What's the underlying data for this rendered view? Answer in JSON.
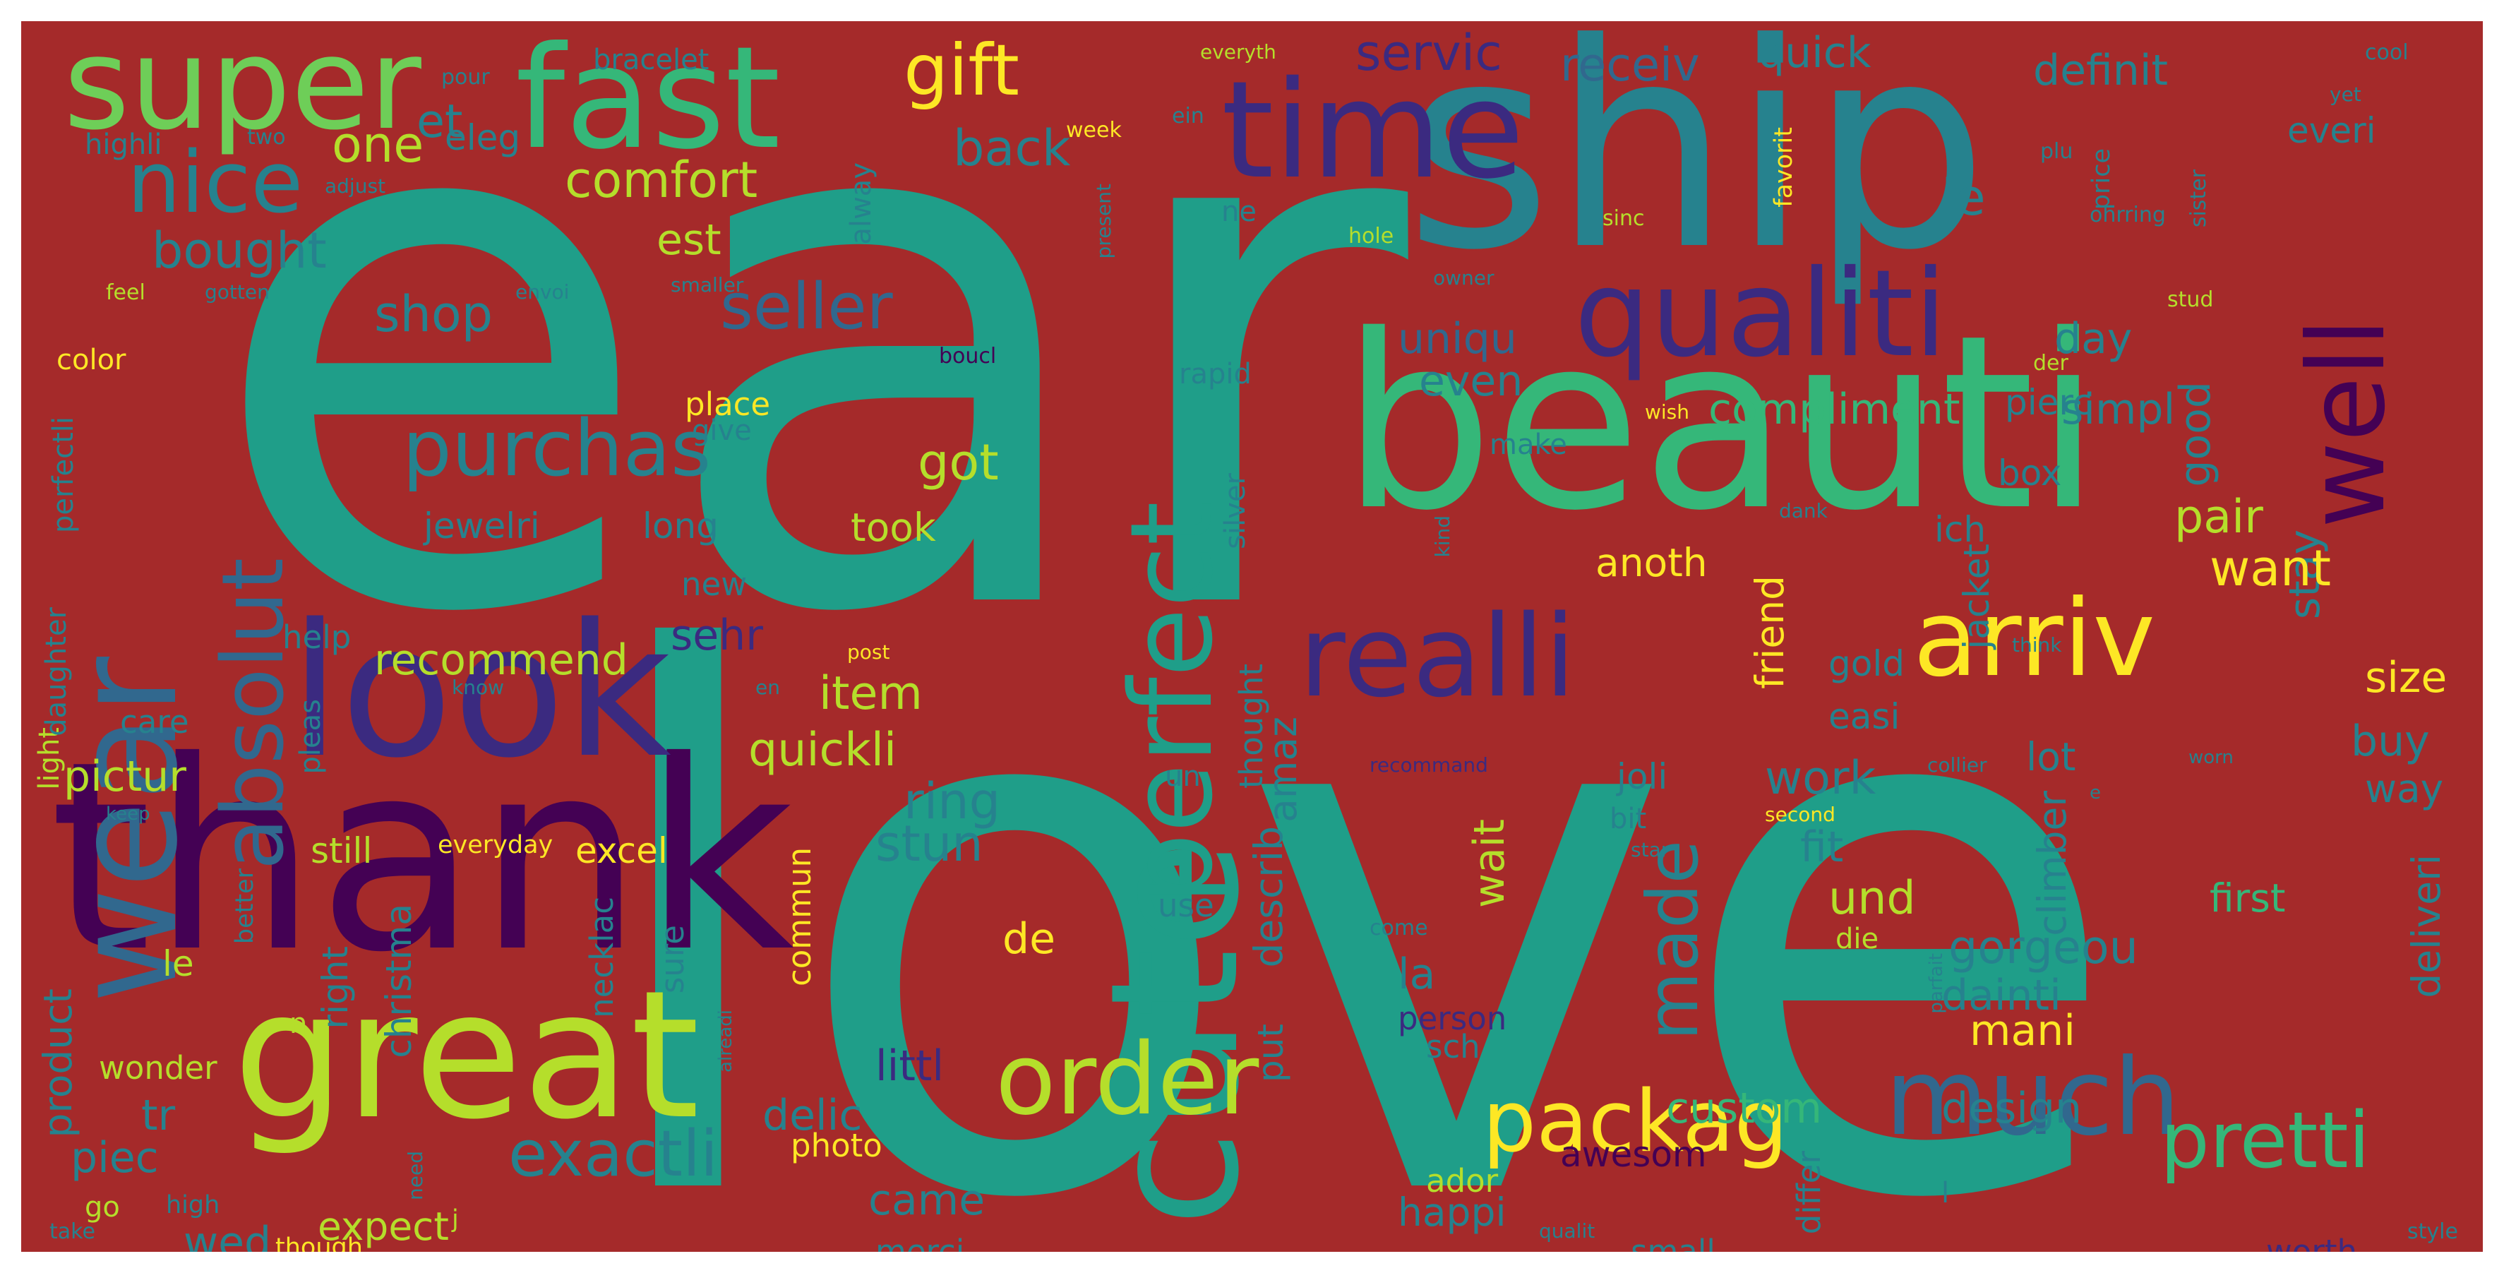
{
  "background_color": "#a52a2a",
  "palette": {
    "dp": "#440154",
    "in": "#3b2a80",
    "bl": "#31688e",
    "tl": "#26828e",
    "tg": "#1f9e89",
    "gr": "#35b779",
    "lg": "#6ece58",
    "lm": "#b5de2b",
    "ye": "#fde725"
  },
  "words": [
    {
      "text": "ear",
      "color": "tg"
    },
    {
      "text": "love",
      "color": "tg"
    },
    {
      "text": "ship",
      "color": "tl"
    },
    {
      "text": "beauti",
      "color": "gr"
    },
    {
      "text": "thank",
      "color": "dp"
    },
    {
      "text": "look",
      "color": "in"
    },
    {
      "text": "cute",
      "color": "tg"
    },
    {
      "text": "great",
      "color": "lm"
    },
    {
      "text": "wear",
      "color": "bl"
    },
    {
      "text": "fast",
      "color": "gr"
    },
    {
      "text": "super",
      "color": "lg"
    },
    {
      "text": "time",
      "color": "in"
    },
    {
      "text": "qualiti",
      "color": "in"
    },
    {
      "text": "perfect",
      "color": "tg"
    },
    {
      "text": "realli",
      "color": "in"
    },
    {
      "text": "arriv",
      "color": "ye"
    },
    {
      "text": "well",
      "color": "dp"
    },
    {
      "text": "order",
      "color": "lm"
    },
    {
      "text": "much",
      "color": "bl"
    },
    {
      "text": "packag",
      "color": "ye"
    },
    {
      "text": "pretti",
      "color": "gr"
    },
    {
      "text": "absolut",
      "color": "bl"
    },
    {
      "text": "nice",
      "color": "tl"
    },
    {
      "text": "purchas",
      "color": "tl"
    },
    {
      "text": "exactli",
      "color": "tl"
    },
    {
      "text": "gift",
      "color": "ye"
    },
    {
      "text": "seller",
      "color": "bl"
    },
    {
      "text": "made",
      "color": "tl"
    },
    {
      "text": "one",
      "color": "lm"
    },
    {
      "text": "comfort",
      "color": "lm"
    },
    {
      "text": "bought",
      "color": "tl"
    },
    {
      "text": "et",
      "color": "tl"
    },
    {
      "text": "eleg",
      "color": "tl"
    },
    {
      "text": "est",
      "color": "lm"
    },
    {
      "text": "shop",
      "color": "tl"
    },
    {
      "text": "back",
      "color": "tl"
    },
    {
      "text": "servic",
      "color": "in"
    },
    {
      "text": "receiv",
      "color": "bl"
    },
    {
      "text": "quick",
      "color": "tl"
    },
    {
      "text": "definit",
      "color": "tl"
    },
    {
      "text": "everi",
      "color": "tl"
    },
    {
      "text": "je",
      "color": "tl"
    },
    {
      "text": "good",
      "color": "tl"
    },
    {
      "text": "day",
      "color": "tl"
    },
    {
      "text": "uniqu",
      "color": "bl"
    },
    {
      "text": "even",
      "color": "tl"
    },
    {
      "text": "compliment",
      "color": "gr"
    },
    {
      "text": "simpl",
      "color": "tl"
    },
    {
      "text": "pierc",
      "color": "tl"
    },
    {
      "text": "stay",
      "color": "tl"
    },
    {
      "text": "box",
      "color": "tl"
    },
    {
      "text": "pair",
      "color": "lm"
    },
    {
      "text": "ich",
      "color": "tl"
    },
    {
      "text": "want",
      "color": "ye"
    },
    {
      "text": "got",
      "color": "lm"
    },
    {
      "text": "jewelri",
      "color": "tl"
    },
    {
      "text": "long",
      "color": "tl"
    },
    {
      "text": "took",
      "color": "lm"
    },
    {
      "text": "anoth",
      "color": "ye"
    },
    {
      "text": "friend",
      "color": "ye"
    },
    {
      "text": "recommend",
      "color": "lm"
    },
    {
      "text": "sehr",
      "color": "in"
    },
    {
      "text": "item",
      "color": "lm"
    },
    {
      "text": "quickli",
      "color": "lm"
    },
    {
      "text": "pictur",
      "color": "lm"
    },
    {
      "text": "care",
      "color": "tl"
    },
    {
      "text": "help",
      "color": "tl"
    },
    {
      "text": "new",
      "color": "tl"
    },
    {
      "text": "amaz",
      "color": "tl"
    },
    {
      "text": "ring",
      "color": "tl"
    },
    {
      "text": "stun",
      "color": "tl"
    },
    {
      "text": "work",
      "color": "tl"
    },
    {
      "text": "fit",
      "color": "tl"
    },
    {
      "text": "und",
      "color": "lm"
    },
    {
      "text": "lot",
      "color": "tl"
    },
    {
      "text": "easi",
      "color": "tl"
    },
    {
      "text": "gold",
      "color": "tl"
    },
    {
      "text": "jacket",
      "color": "tl"
    },
    {
      "text": "size",
      "color": "ye"
    },
    {
      "text": "buy",
      "color": "tl"
    },
    {
      "text": "way",
      "color": "tl"
    },
    {
      "text": "climber",
      "color": "tl"
    },
    {
      "text": "gorgeou",
      "color": "tl"
    },
    {
      "text": "dainti",
      "color": "tl"
    },
    {
      "text": "mani",
      "color": "ye"
    },
    {
      "text": "deliveri",
      "color": "tl"
    },
    {
      "text": "first",
      "color": "gr"
    },
    {
      "text": "joli",
      "color": "tl"
    },
    {
      "text": "wait",
      "color": "lm"
    },
    {
      "text": "la",
      "color": "tl"
    },
    {
      "text": "describ",
      "color": "tl"
    },
    {
      "text": "thought",
      "color": "tl"
    },
    {
      "text": "excel",
      "color": "ye"
    },
    {
      "text": "still",
      "color": "lm"
    },
    {
      "text": "everyday",
      "color": "ye"
    },
    {
      "text": "de",
      "color": "ye"
    },
    {
      "text": "le",
      "color": "lm"
    },
    {
      "text": "product",
      "color": "tl"
    },
    {
      "text": "right",
      "color": "tl"
    },
    {
      "text": "christma",
      "color": "tl"
    },
    {
      "text": "necklac",
      "color": "tl"
    },
    {
      "text": "sure",
      "color": "tl"
    },
    {
      "text": "commun",
      "color": "ye"
    },
    {
      "text": "littl",
      "color": "in"
    },
    {
      "text": "delic",
      "color": "tl"
    },
    {
      "text": "custom",
      "color": "gr"
    },
    {
      "text": "design",
      "color": "tl"
    },
    {
      "text": "awesom",
      "color": "dp"
    },
    {
      "text": "put",
      "color": "tl"
    },
    {
      "text": "wonder",
      "color": "lm"
    },
    {
      "text": "tr",
      "color": "tl"
    },
    {
      "text": "piec",
      "color": "tl"
    },
    {
      "text": "photo",
      "color": "ye"
    },
    {
      "text": "came",
      "color": "tl"
    },
    {
      "text": "ador",
      "color": "lm"
    },
    {
      "text": "happi",
      "color": "tl"
    },
    {
      "text": "expect",
      "color": "lm"
    },
    {
      "text": "wed",
      "color": "tl"
    },
    {
      "text": "go",
      "color": "lm"
    },
    {
      "text": "merci",
      "color": "tl"
    },
    {
      "text": "small",
      "color": "tl"
    },
    {
      "text": "worth",
      "color": "in"
    },
    {
      "text": "differ",
      "color": "tl"
    },
    {
      "text": "person",
      "color": "in"
    },
    {
      "text": "sch",
      "color": "tl"
    },
    {
      "text": "use",
      "color": "tl"
    },
    {
      "text": "die",
      "color": "lm"
    },
    {
      "text": "bit",
      "color": "tl"
    },
    {
      "text": "pleas",
      "color": "tl"
    },
    {
      "text": "light",
      "color": "lm"
    },
    {
      "text": "daughter",
      "color": "tl"
    },
    {
      "text": "perfectli",
      "color": "tl"
    },
    {
      "text": "color",
      "color": "ye"
    },
    {
      "text": "feel",
      "color": "lm"
    },
    {
      "text": "highli",
      "color": "tl"
    },
    {
      "text": "two",
      "color": "tl"
    },
    {
      "text": "bracelet",
      "color": "tl"
    },
    {
      "text": "pour",
      "color": "tl"
    },
    {
      "text": "everyth",
      "color": "lm"
    },
    {
      "text": "ein",
      "color": "tl"
    },
    {
      "text": "week",
      "color": "ye"
    },
    {
      "text": "alway",
      "color": "tl"
    },
    {
      "text": "present",
      "color": "tl"
    },
    {
      "text": "ne",
      "color": "tl"
    },
    {
      "text": "hole",
      "color": "lm"
    },
    {
      "text": "plu",
      "color": "tl"
    },
    {
      "text": "price",
      "color": "tl"
    },
    {
      "text": "ohrring",
      "color": "tl"
    },
    {
      "text": "sister",
      "color": "tl"
    },
    {
      "text": "sinc",
      "color": "lm"
    },
    {
      "text": "favorit",
      "color": "ye"
    },
    {
      "text": "stud",
      "color": "lm"
    },
    {
      "text": "der",
      "color": "lm"
    },
    {
      "text": "smaller",
      "color": "tl"
    },
    {
      "text": "owner",
      "color": "tl"
    },
    {
      "text": "cool",
      "color": "tl"
    },
    {
      "text": "yet",
      "color": "tl"
    },
    {
      "text": "boucl",
      "color": "dp"
    },
    {
      "text": "gotten",
      "color": "tl"
    },
    {
      "text": "envoi",
      "color": "tl"
    },
    {
      "text": "adjust",
      "color": "tl"
    },
    {
      "text": "place",
      "color": "ye"
    },
    {
      "text": "give",
      "color": "tl"
    },
    {
      "text": "make",
      "color": "tl"
    },
    {
      "text": "rapid",
      "color": "tl"
    },
    {
      "text": "silver",
      "color": "tl"
    },
    {
      "text": "wish",
      "color": "ye"
    },
    {
      "text": "kind",
      "color": "tl"
    },
    {
      "text": "dank",
      "color": "tl"
    },
    {
      "text": "think",
      "color": "tl"
    },
    {
      "text": "post",
      "color": "ye"
    },
    {
      "text": "en",
      "color": "tl"
    },
    {
      "text": "know",
      "color": "tl"
    },
    {
      "text": "un",
      "color": "tl"
    },
    {
      "text": "recommand",
      "color": "in"
    },
    {
      "text": "collier",
      "color": "tl"
    },
    {
      "text": "second",
      "color": "ye"
    },
    {
      "text": "worn",
      "color": "tl"
    },
    {
      "text": "e",
      "color": "tl"
    },
    {
      "text": "star",
      "color": "tl"
    },
    {
      "text": "come",
      "color": "tl"
    },
    {
      "text": "parfait",
      "color": "tl"
    },
    {
      "text": "alreadi",
      "color": "tl"
    },
    {
      "text": "keep",
      "color": "tl"
    },
    {
      "text": "better",
      "color": "tl"
    },
    {
      "text": "n",
      "color": "lm"
    },
    {
      "text": "high",
      "color": "tl"
    },
    {
      "text": "take",
      "color": "tl"
    },
    {
      "text": "though",
      "color": "ye"
    },
    {
      "text": "need",
      "color": "tl"
    },
    {
      "text": "j",
      "color": "lm"
    },
    {
      "text": "qualit",
      "color": "tl"
    },
    {
      "text": "style",
      "color": "tl"
    },
    {
      "text": "l",
      "color": "tl"
    }
  ]
}
